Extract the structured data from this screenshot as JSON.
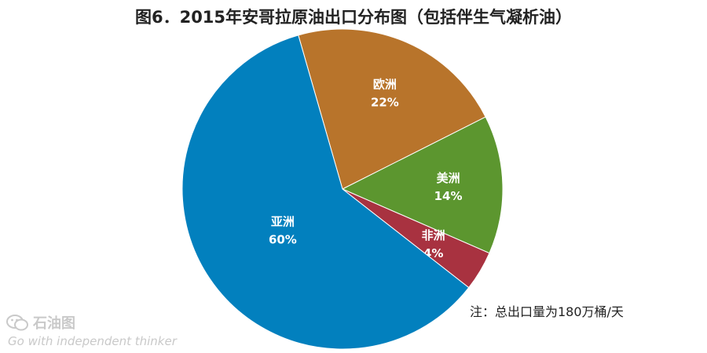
{
  "title": "图6．2015年安哥拉原油出口分布图（包括伴生气凝析油）",
  "note": "注：总出口量为180万桶/天",
  "watermark": {
    "brand": "石油图",
    "slogan": "Go with independent thinker"
  },
  "chart_data": {
    "type": "pie",
    "title": "图6．2015年安哥拉原油出口分布图（包括伴生气凝析油）",
    "categories": [
      "欧洲",
      "美洲",
      "非洲",
      "亚洲"
    ],
    "values": [
      22,
      14,
      4,
      60
    ],
    "labels": [
      "22%",
      "14%",
      "4%",
      "60%"
    ],
    "colors": [
      "#B8742B",
      "#5C962F",
      "#A83240",
      "#0280BE"
    ],
    "start_angle_deg": -16,
    "direction": "clockwise",
    "legend": "none"
  }
}
